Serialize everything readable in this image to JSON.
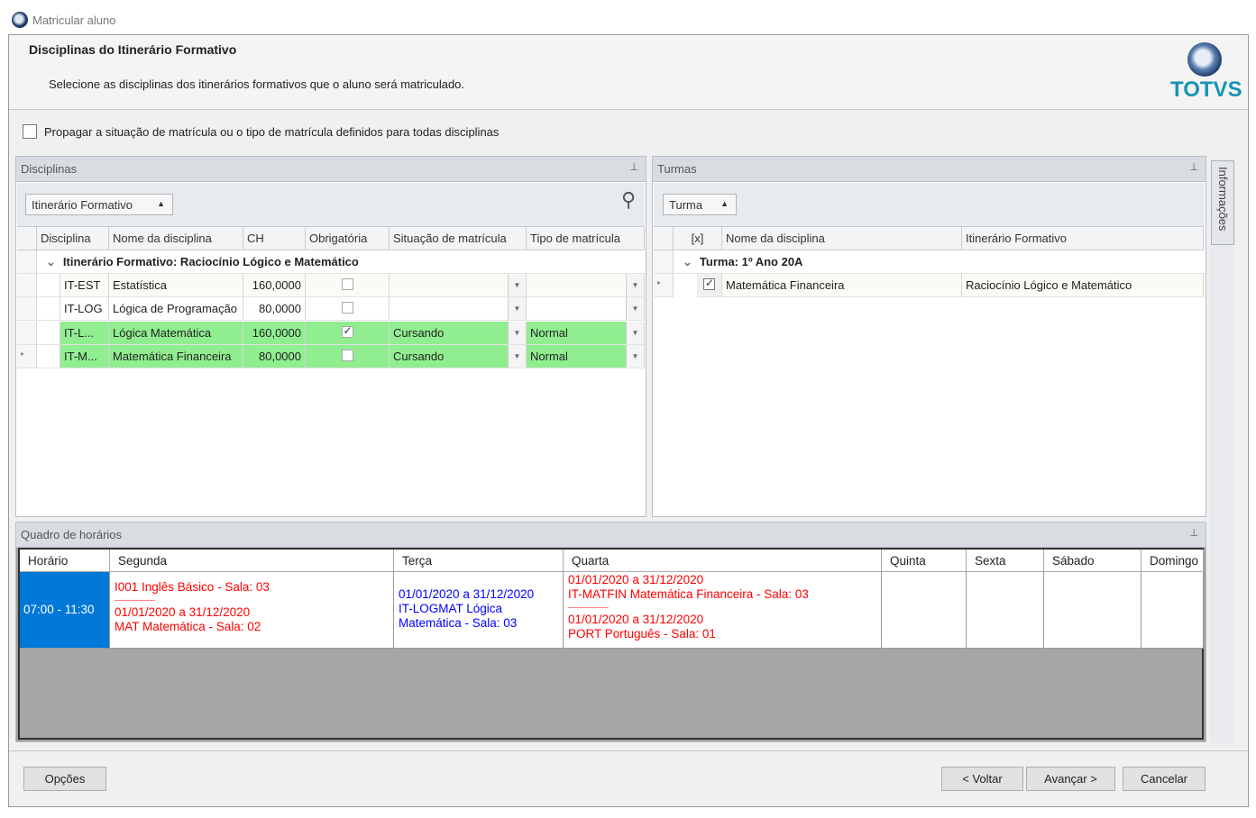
{
  "window": {
    "title": "Matricular aluno"
  },
  "header": {
    "title": "Disciplinas do Itinerário Formativo",
    "subtitle": "Selecione as disciplinas dos itinerários formativos que o aluno será matriculado.",
    "logo": "TOTVS"
  },
  "propagate": {
    "label": "Propagar a situação de matrícula ou o tipo de matrícula definidos para todas disciplinas",
    "checked": false
  },
  "disciplinas": {
    "title": "Disciplinas",
    "group_by": "Itinerário Formativo",
    "columns": [
      "Disciplina",
      "Nome da disciplina",
      "CH",
      "Obrigatória",
      "Situação de matrícula",
      "Tipo de matrícula"
    ],
    "group_label": "Itinerário Formativo: Raciocínio Lógico e Matemático",
    "rows": [
      {
        "codigo": "IT-EST",
        "nome": "Estatística",
        "ch": "160,0000",
        "obrigatoria": false,
        "situacao": "",
        "tipo": "",
        "highlight": false
      },
      {
        "codigo": "IT-LOG",
        "nome": "Lógica de Programação",
        "ch": "80,0000",
        "obrigatoria": false,
        "situacao": "",
        "tipo": "",
        "highlight": false
      },
      {
        "codigo": "IT-L...",
        "nome": "Lógica Matemática",
        "ch": "160,0000",
        "obrigatoria": true,
        "situacao": "Cursando",
        "tipo": "Normal",
        "highlight": true
      },
      {
        "codigo": "IT-M...",
        "nome": "Matemática Financeira",
        "ch": "80,0000",
        "obrigatoria": false,
        "situacao": "Cursando",
        "tipo": "Normal",
        "highlight": true
      }
    ]
  },
  "turmas": {
    "title": "Turmas",
    "group_by": "Turma",
    "columns": [
      "[x]",
      "Nome da disciplina",
      "Itinerário Formativo"
    ],
    "group_label": "Turma: 1º Ano 20A",
    "rows": [
      {
        "checked": true,
        "nome": "Matemática Financeira",
        "itinerario": "Raciocínio Lógico e Matemático"
      }
    ]
  },
  "side_tab": "Informações",
  "quadro": {
    "title": "Quadro de horários",
    "columns": [
      "Horário",
      "Segunda",
      "Terça",
      "Quarta",
      "Quinta",
      "Sexta",
      "Sábado",
      "Domingo"
    ],
    "row": {
      "horario": "07:00 - 11:30",
      "segunda": [
        "I001  Inglês Básico - Sala: 03",
        "---------------",
        "01/01/2020 a 31/12/2020",
        "MAT  Matemática - Sala: 02"
      ],
      "terca": [
        "01/01/2020 a 31/12/2020",
        "IT-LOGMAT  Lógica",
        "Matemática - Sala: 03"
      ],
      "quarta": [
        "01/01/2020 a 31/12/2020",
        "IT-MATFIN  Matemática Financeira - Sala: 03",
        "---------------",
        "01/01/2020 a 31/12/2020",
        "PORT  Português - Sala: 01"
      ]
    },
    "colors": {
      "selected": "#0078d7",
      "conflict": "#ff0000",
      "ok": "#0000ff"
    }
  },
  "buttons": {
    "options": "Opções",
    "back": "< Voltar",
    "next": "Avançar >",
    "cancel": "Cancelar"
  }
}
